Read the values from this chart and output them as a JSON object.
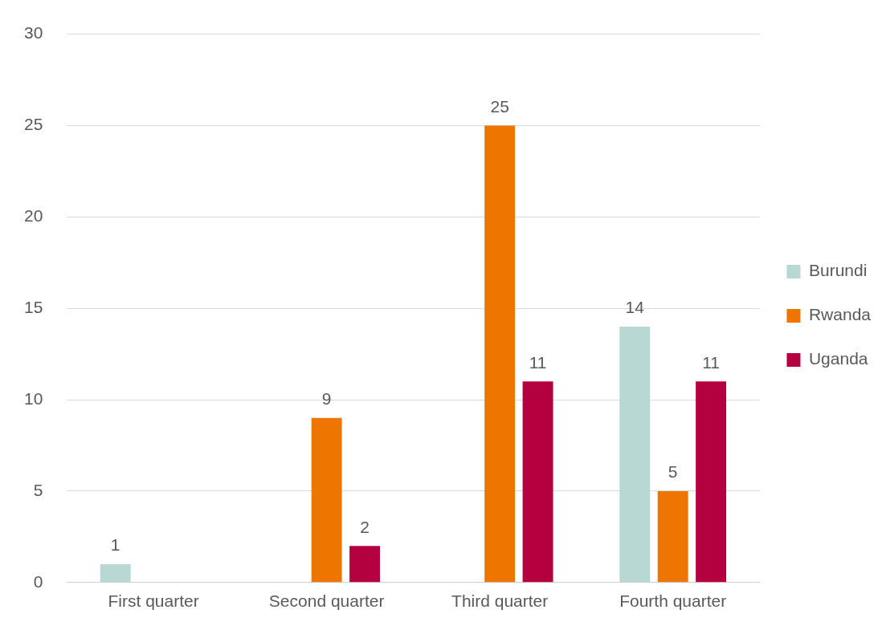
{
  "chart_data": {
    "type": "bar",
    "categories": [
      "First quarter",
      "Second quarter",
      "Third quarter",
      "Fourth quarter"
    ],
    "series": [
      {
        "name": "Burundi",
        "color": "#b8d9d3",
        "values": [
          1,
          null,
          null,
          14
        ]
      },
      {
        "name": "Rwanda",
        "color": "#ee7600",
        "values": [
          null,
          9,
          25,
          5
        ]
      },
      {
        "name": "Uganda",
        "color": "#b5003f",
        "values": [
          null,
          2,
          11,
          11
        ]
      }
    ],
    "ylim": [
      0,
      30
    ],
    "yticks": [
      0,
      5,
      10,
      15,
      20,
      25,
      30
    ],
    "grid": "y",
    "legend": "right",
    "data_labels": true
  }
}
